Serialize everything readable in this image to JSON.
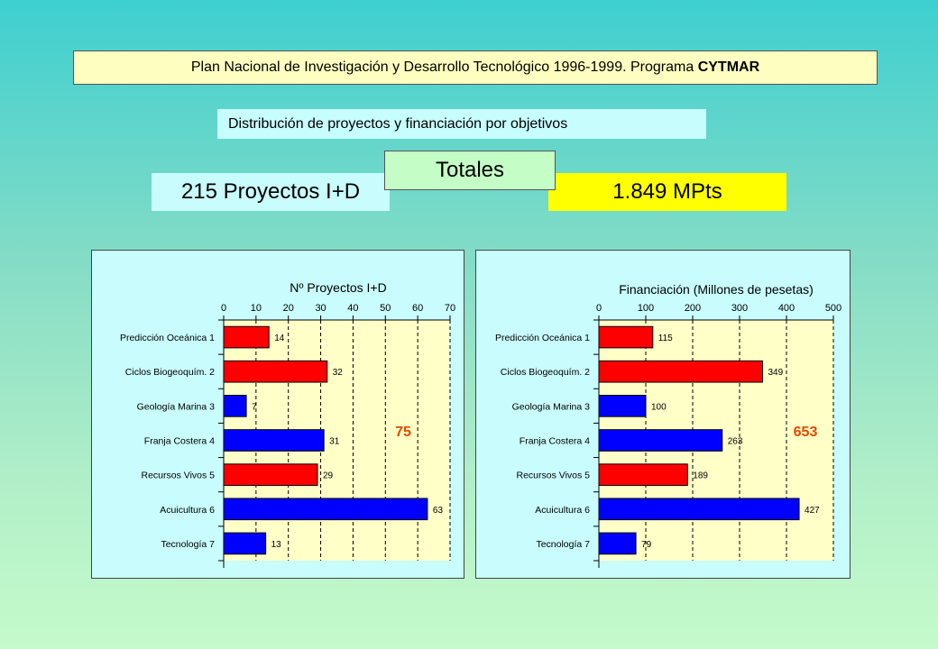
{
  "header": {
    "banner_text": "Plan Nacional de Investigación y Desarrollo Tecnológico 1996-1999. Programa",
    "banner_bold": "CYTMAR",
    "subtitle": "Distribución de proyectos y financiación por objetivos"
  },
  "summary": {
    "projects_label": "215 Proyectos I+D",
    "totals_label": "Totales",
    "funding_label": "1.849 MPts"
  },
  "colors": {
    "red": "#ff0000",
    "blue": "#0000ff",
    "plot_bg": "#ffffc8",
    "highlight": "#e04a00"
  },
  "chart_data": [
    {
      "type": "bar",
      "orientation": "horizontal",
      "title": "Nº Proyectos I+D",
      "categories": [
        "Predicción Oceánica 1",
        "Ciclos Biogeoquím. 2",
        "Geología Marina 3",
        "Franja Costera 4",
        "Recursos Vivos 5",
        "Acuicultura 6",
        "Tecnología 7"
      ],
      "values": [
        14,
        32,
        7,
        31,
        29,
        63,
        13
      ],
      "bar_colors": [
        "red",
        "red",
        "blue",
        "blue",
        "red",
        "blue",
        "blue"
      ],
      "xlim": [
        0,
        70
      ],
      "ticks": [
        0,
        10,
        20,
        30,
        40,
        50,
        60,
        70
      ],
      "annotation": "75",
      "grid": true
    },
    {
      "type": "bar",
      "orientation": "horizontal",
      "title": "Financiación (Millones de pesetas)",
      "categories": [
        "Predicción Oceánica 1",
        "Ciclos Biogeoquím. 2",
        "Geología Marina 3",
        "Franja Costera 4",
        "Recursos Vivos 5",
        "Acuicultura 6",
        "Tecnología 7"
      ],
      "values": [
        115,
        349,
        100,
        263,
        189,
        427,
        79
      ],
      "bar_colors": [
        "red",
        "red",
        "blue",
        "blue",
        "red",
        "blue",
        "blue"
      ],
      "xlim": [
        0,
        500
      ],
      "ticks": [
        0,
        100,
        200,
        300,
        400,
        500
      ],
      "annotation": "653",
      "grid": true
    }
  ]
}
